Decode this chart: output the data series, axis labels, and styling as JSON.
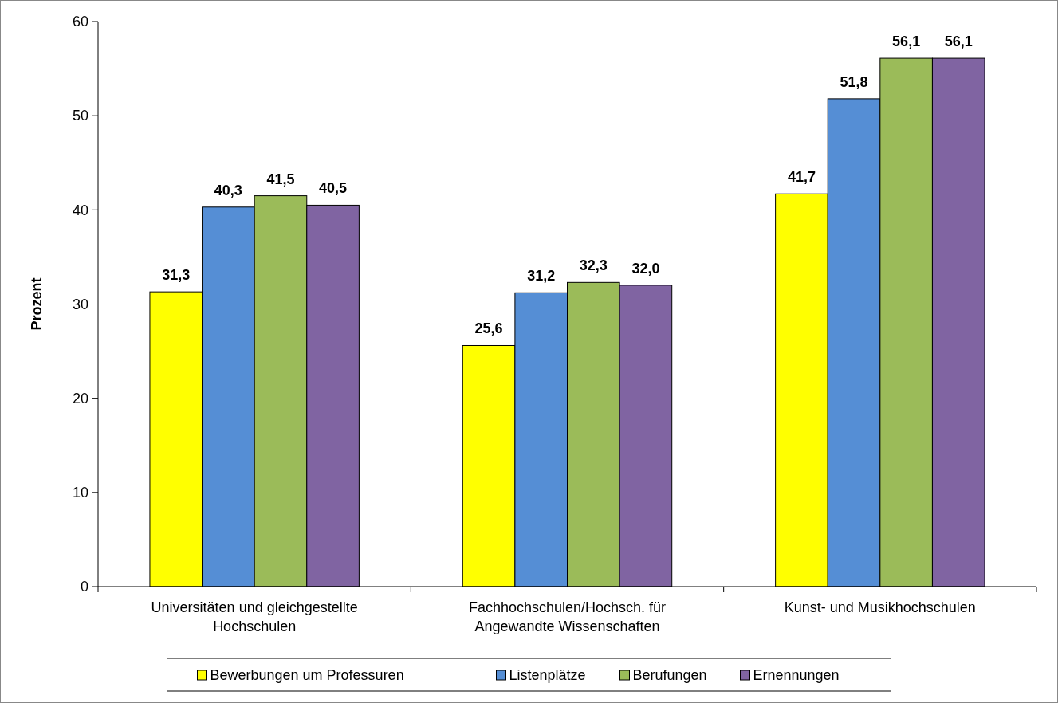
{
  "chart_data": {
    "type": "bar",
    "ylabel": "Prozent",
    "categories": [
      "Universitäten und gleichgestellte Hochschulen",
      "Fachhochschulen/Hochsch. für Angewandte Wissenschaften",
      "Kunst- und Musikhochschulen"
    ],
    "series": [
      {
        "name": "Bewerbungen um Professuren",
        "color": "#ffff00",
        "values": [
          31.3,
          25.6,
          41.7
        ],
        "value_labels": [
          "31,3",
          "25,6",
          "41,7"
        ]
      },
      {
        "name": "Listenplätze",
        "color": "#558ed5",
        "values": [
          40.3,
          31.2,
          51.8
        ],
        "value_labels": [
          "40,3",
          "31,2",
          "51,8"
        ]
      },
      {
        "name": "Berufungen",
        "color": "#9bbb59",
        "values": [
          41.5,
          32.3,
          56.1
        ],
        "value_labels": [
          "41,5",
          "32,3",
          "56,1"
        ]
      },
      {
        "name": "Ernennungen",
        "color": "#8064a2",
        "values": [
          40.5,
          32.0,
          56.1
        ],
        "value_labels": [
          "40,5",
          "32,0",
          "56,1"
        ]
      }
    ],
    "ylim": [
      0,
      60
    ],
    "yticks": [
      0,
      10,
      20,
      30,
      40,
      50,
      60
    ],
    "grid": false,
    "legend": "bottom"
  }
}
